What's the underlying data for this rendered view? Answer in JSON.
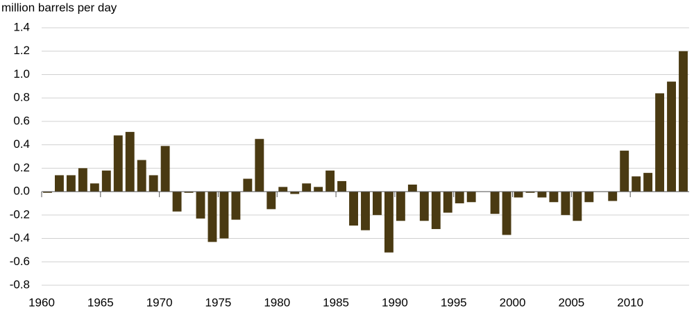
{
  "chart_data": {
    "type": "bar",
    "y_axis_label": "million barrels  per day",
    "x": [
      1960,
      1961,
      1962,
      1963,
      1964,
      1965,
      1966,
      1967,
      1968,
      1969,
      1970,
      1971,
      1972,
      1973,
      1974,
      1975,
      1976,
      1977,
      1978,
      1979,
      1980,
      1981,
      1982,
      1983,
      1984,
      1985,
      1986,
      1987,
      1988,
      1989,
      1990,
      1991,
      1992,
      1993,
      1994,
      1995,
      1996,
      1997,
      1998,
      1999,
      2000,
      2001,
      2002,
      2003,
      2004,
      2005,
      2006,
      2007,
      2008,
      2009,
      2010,
      2011,
      2012,
      2013,
      2014
    ],
    "values": [
      -0.01,
      0.14,
      0.14,
      0.2,
      0.07,
      0.18,
      0.48,
      0.51,
      0.27,
      0.14,
      0.39,
      -0.17,
      -0.01,
      -0.23,
      -0.43,
      -0.4,
      -0.24,
      0.11,
      0.45,
      -0.15,
      0.04,
      -0.02,
      0.07,
      0.04,
      0.18,
      0.09,
      -0.29,
      -0.33,
      -0.2,
      -0.52,
      -0.25,
      0.06,
      -0.25,
      -0.32,
      -0.18,
      -0.1,
      -0.09,
      0,
      -0.19,
      -0.37,
      -0.05,
      -0.01,
      -0.05,
      -0.09,
      -0.2,
      -0.25,
      -0.09,
      0,
      -0.08,
      0.35,
      0.13,
      0.16,
      0.84,
      0.94,
      1.2
    ],
    "color": "#4a3a12",
    "xlim": [
      1960,
      2015
    ],
    "xticks": [
      1960,
      1965,
      1970,
      1975,
      1980,
      1985,
      1990,
      1995,
      2000,
      2005,
      2010
    ],
    "ylim": [
      -0.8,
      1.4
    ],
    "yticks": [
      1.4,
      1.2,
      {
        "value": 1,
        "label": "1.0"
      },
      0.8,
      0.6,
      0.4,
      0.2,
      {
        "value": 0,
        "label": "0.0"
      },
      -0.2,
      -0.4,
      -0.6,
      -0.8
    ],
    "grid": true
  }
}
